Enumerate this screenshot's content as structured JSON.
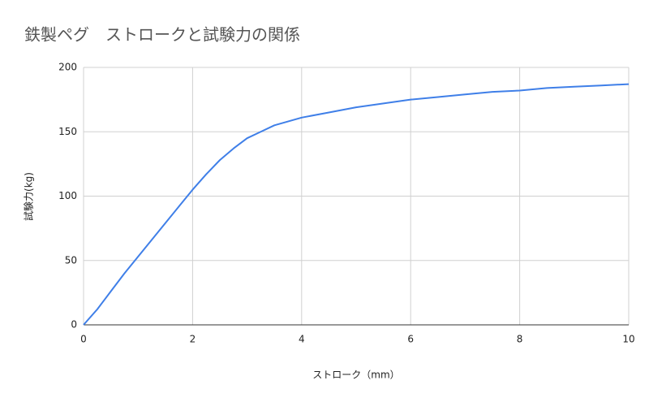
{
  "chart_data": {
    "type": "line",
    "title": "鉄製ペグ　ストロークと試験力の関係",
    "x_label": "ストローク（mm）",
    "y_label": "試験力(kg)",
    "x": [
      0,
      0.25,
      0.5,
      0.75,
      1,
      1.25,
      1.5,
      1.75,
      2,
      2.25,
      2.5,
      2.75,
      3,
      3.25,
      3.5,
      3.75,
      4,
      4.5,
      5,
      5.5,
      6,
      6.5,
      7,
      7.5,
      8,
      8.5,
      9,
      9.5,
      10
    ],
    "values": [
      0,
      12,
      26,
      40,
      53,
      66,
      79,
      92,
      105,
      117,
      128,
      137,
      145,
      150,
      155,
      158,
      161,
      165,
      169,
      172,
      175,
      177,
      179,
      181,
      182,
      184,
      185,
      186,
      187
    ],
    "color": "#3f7fe8",
    "xlim": [
      0,
      10
    ],
    "xticks": [
      0,
      2,
      4,
      6,
      8,
      10
    ],
    "ylim": [
      0,
      200
    ],
    "yticks": [
      0,
      50,
      100,
      150,
      200
    ],
    "grid": true
  }
}
